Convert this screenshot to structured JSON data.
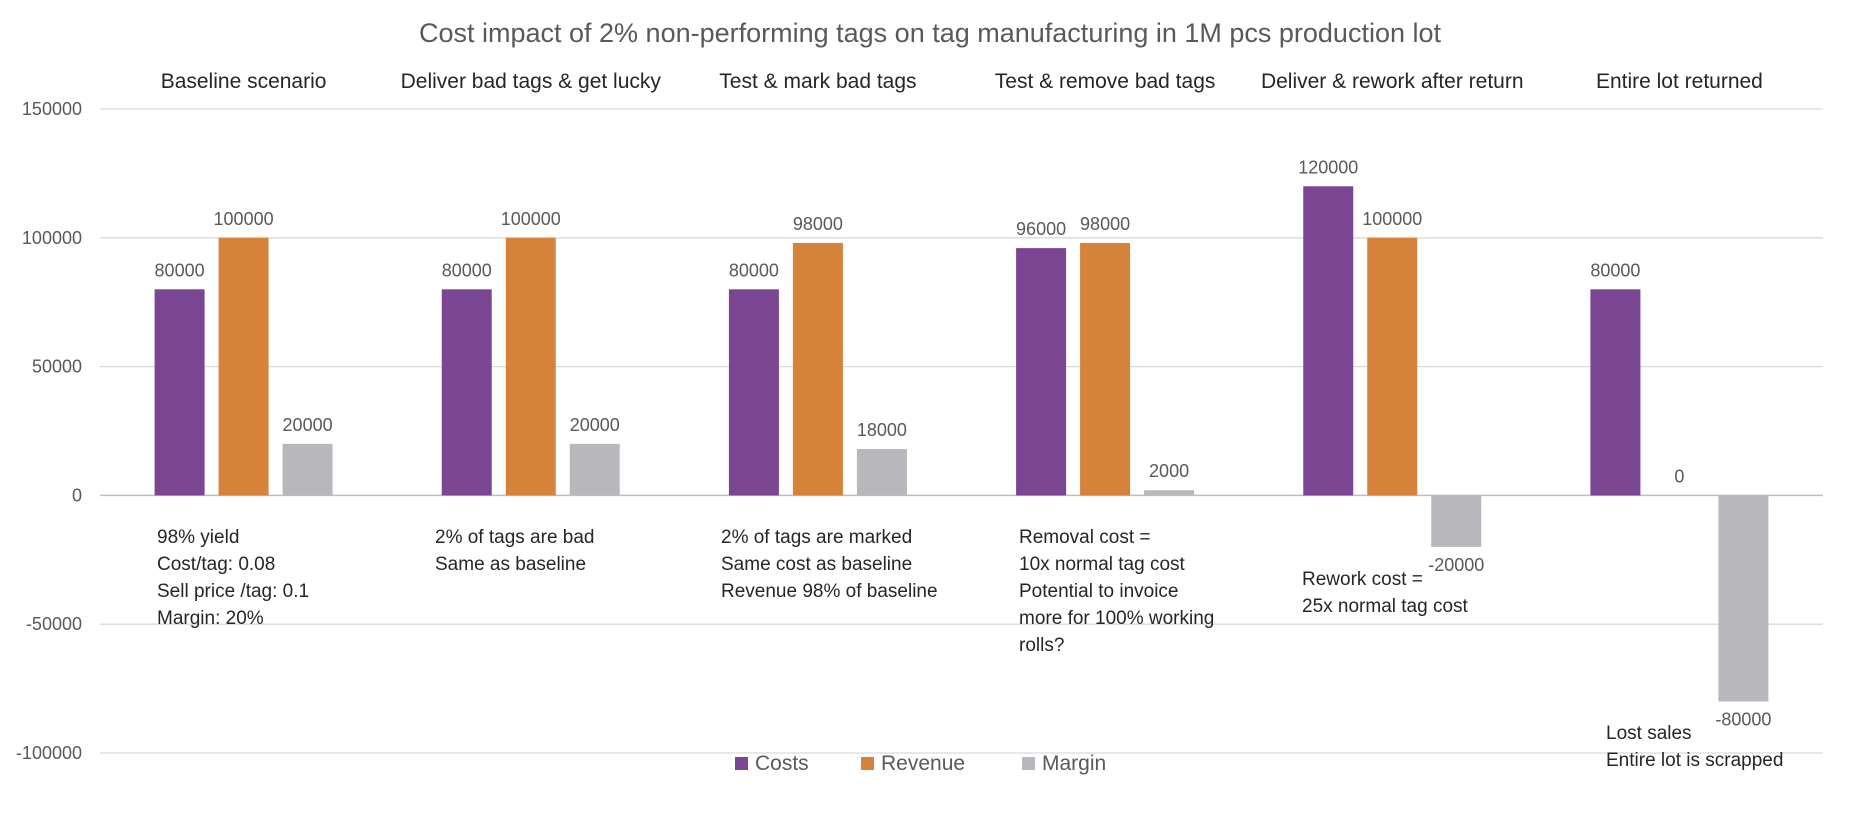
{
  "chart_data": {
    "type": "bar",
    "title": "Cost impact of 2% non-performing tags on tag manufacturing in 1M pcs production lot",
    "categories": [
      "Baseline scenario",
      "Deliver bad tags & get lucky",
      "Test & mark bad tags",
      "Test & remove bad tags",
      "Deliver & rework after return",
      "Entire lot returned"
    ],
    "series": [
      {
        "name": "Costs",
        "color": "#7a4591",
        "values": [
          80000,
          80000,
          80000,
          96000,
          120000,
          80000
        ],
        "labels": [
          "80000",
          "80000",
          "80000",
          "96000",
          "120000",
          "80000"
        ]
      },
      {
        "name": "Revenue",
        "color": "#d5833a",
        "values": [
          100000,
          100000,
          98000,
          98000,
          100000,
          0
        ],
        "labels": [
          "100000",
          "100000",
          "98000",
          "98000",
          "100000",
          "0"
        ]
      },
      {
        "name": "Margin",
        "color": "#b8b8bc",
        "values": [
          20000,
          20000,
          18000,
          2000,
          -20000,
          -80000
        ],
        "labels": [
          "20000",
          "20000",
          "18000",
          "2000",
          "-20000",
          "-80000"
        ]
      }
    ],
    "ylim": [
      -100000,
      150000
    ],
    "yticks": [
      150000,
      100000,
      50000,
      0,
      -50000,
      -100000
    ],
    "ytick_labels": [
      "150000",
      "100000",
      "50000",
      "0",
      "-50000",
      "-100000"
    ],
    "grid": true,
    "legend_position": "bottom",
    "annotations": [
      [
        "98% yield",
        "Cost/tag: 0.08",
        "Sell price /tag: 0.1",
        "Margin: 20%"
      ],
      [
        "2% of tags are bad",
        "Same as baseline"
      ],
      [
        "2% of tags are marked",
        "Same cost as baseline",
        "Revenue 98% of baseline"
      ],
      [
        "Removal cost =",
        "10x normal tag cost",
        "Potential to invoice",
        "more for 100% working",
        "rolls?"
      ],
      [
        "Rework cost =",
        "25x normal tag cost"
      ],
      [
        "Lost sales",
        "Entire lot is scrapped"
      ]
    ]
  }
}
